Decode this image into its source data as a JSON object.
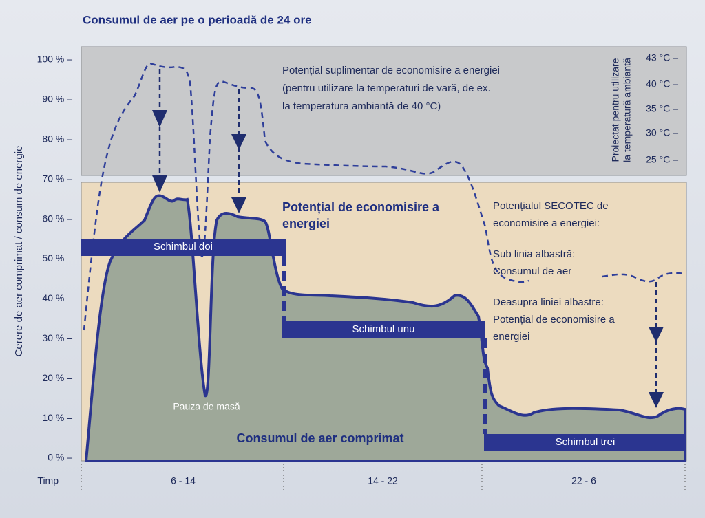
{
  "title": "Consumul de aer pe o perioadă de 24 ore",
  "y_axis": {
    "label": "Cerere de aer comprimat / consum de energie",
    "ticks": [
      "100 % –",
      "90 % –",
      "80 % –",
      "70 % –",
      "60 % –",
      "50 % –",
      "40 % –",
      "30 % –",
      "20 % –",
      "10 % –",
      "0 % –"
    ]
  },
  "temperature": {
    "label": [
      "Proiectat pentru utilizare",
      "la temperatură ambiantă"
    ],
    "ticks": [
      "43 °C –",
      "40 °C –",
      "35 °C –",
      "30 °C –",
      "25 °C –"
    ]
  },
  "extra_potential": [
    "Potențial suplimentar de economisire a energiei",
    "(pentru utilizare la temperaturi de vară, de ex.",
    "la temperatura ambiantă de 40 °C)"
  ],
  "saving_potential": [
    "Potențial de economisire a",
    "energiei"
  ],
  "secotec": [
    "Potențialul SECOTEC de",
    "economisire a energiei:",
    "Sub linia albastră:",
    "Consumul de aer",
    "Deasupra liniei albastre:",
    "Potențial de economisire a",
    "energiei"
  ],
  "shifts": [
    "Schimbul doi",
    "Schimbul unu",
    "Schimbul trei"
  ],
  "lunch_break": "Pauza de masă",
  "consumption": "Consumul de aer comprimat",
  "x_axis": {
    "label": "Timp",
    "periods": [
      "6   -   14",
      "14   -   22",
      "22   -   6"
    ]
  }
}
